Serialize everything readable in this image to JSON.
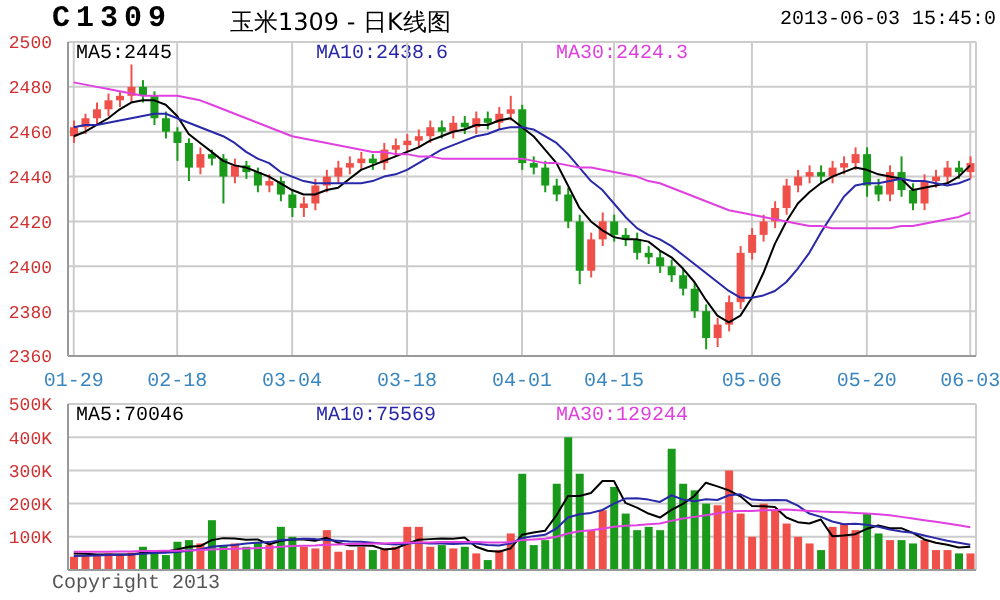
{
  "chart_data": [
    {
      "type": "candlestick",
      "title": "C1309",
      "subtitle": "玉米1309 - 日K线图",
      "annotations": [
        "2013-06-03 15:45:0"
      ],
      "categories": [
        "01-29",
        null,
        null,
        null,
        null,
        null,
        null,
        null,
        null,
        "02-18",
        null,
        null,
        null,
        null,
        null,
        null,
        null,
        null,
        null,
        "03-04",
        null,
        null,
        null,
        null,
        null,
        null,
        null,
        null,
        null,
        "03-18",
        null,
        null,
        null,
        null,
        null,
        null,
        null,
        null,
        null,
        "04-01",
        null,
        null,
        null,
        null,
        null,
        null,
        null,
        "04-15",
        null,
        null,
        null,
        null,
        null,
        null,
        null,
        null,
        null,
        null,
        null,
        "05-06",
        null,
        null,
        null,
        null,
        null,
        null,
        null,
        null,
        null,
        "05-20",
        null,
        null,
        null,
        null,
        null,
        null,
        null,
        null,
        "06-03"
      ],
      "ohlc": [
        [
          2458,
          2465,
          2455,
          2462
        ],
        [
          2462,
          2468,
          2459,
          2466
        ],
        [
          2466,
          2473,
          2463,
          2470
        ],
        [
          2470,
          2477,
          2467,
          2474
        ],
        [
          2474,
          2478,
          2471,
          2476
        ],
        [
          2476,
          2490,
          2473,
          2480
        ],
        [
          2480,
          2483,
          2473,
          2476
        ],
        [
          2476,
          2478,
          2463,
          2466
        ],
        [
          2466,
          2469,
          2457,
          2460
        ],
        [
          2460,
          2462,
          2447,
          2455
        ],
        [
          2455,
          2457,
          2438,
          2444
        ],
        [
          2444,
          2453,
          2441,
          2450
        ],
        [
          2450,
          2452,
          2445,
          2448
        ],
        [
          2448,
          2450,
          2428,
          2440
        ],
        [
          2440,
          2448,
          2437,
          2445
        ],
        [
          2445,
          2447,
          2439,
          2442
        ],
        [
          2442,
          2444,
          2433,
          2436
        ],
        [
          2436,
          2441,
          2433,
          2438
        ],
        [
          2438,
          2440,
          2429,
          2432
        ],
        [
          2432,
          2434,
          2422,
          2426
        ],
        [
          2426,
          2431,
          2422,
          2428
        ],
        [
          2428,
          2439,
          2425,
          2436
        ],
        [
          2436,
          2443,
          2433,
          2440
        ],
        [
          2440,
          2447,
          2437,
          2444
        ],
        [
          2444,
          2449,
          2441,
          2446
        ],
        [
          2446,
          2451,
          2443,
          2448
        ],
        [
          2448,
          2450,
          2443,
          2446
        ],
        [
          2446,
          2455,
          2443,
          2452
        ],
        [
          2452,
          2457,
          2449,
          2454
        ],
        [
          2454,
          2459,
          2451,
          2456
        ],
        [
          2456,
          2461,
          2453,
          2458
        ],
        [
          2458,
          2465,
          2455,
          2462
        ],
        [
          2462,
          2465,
          2457,
          2460
        ],
        [
          2460,
          2467,
          2457,
          2464
        ],
        [
          2464,
          2467,
          2459,
          2462
        ],
        [
          2462,
          2469,
          2459,
          2466
        ],
        [
          2466,
          2469,
          2461,
          2464
        ],
        [
          2464,
          2471,
          2461,
          2468
        ],
        [
          2468,
          2476,
          2465,
          2470
        ],
        [
          2470,
          2472,
          2443,
          2446
        ],
        [
          2446,
          2449,
          2441,
          2444
        ],
        [
          2444,
          2447,
          2433,
          2436
        ],
        [
          2436,
          2439,
          2429,
          2432
        ],
        [
          2432,
          2435,
          2417,
          2420
        ],
        [
          2420,
          2423,
          2392,
          2398
        ],
        [
          2398,
          2415,
          2395,
          2412
        ],
        [
          2412,
          2424,
          2409,
          2420
        ],
        [
          2420,
          2423,
          2411,
          2414
        ],
        [
          2414,
          2417,
          2409,
          2412
        ],
        [
          2412,
          2415,
          2403,
          2406
        ],
        [
          2406,
          2409,
          2401,
          2404
        ],
        [
          2404,
          2407,
          2397,
          2400
        ],
        [
          2400,
          2403,
          2393,
          2396
        ],
        [
          2396,
          2399,
          2387,
          2390
        ],
        [
          2390,
          2393,
          2377,
          2380
        ],
        [
          2380,
          2383,
          2363,
          2368
        ],
        [
          2368,
          2377,
          2364,
          2374
        ],
        [
          2374,
          2387,
          2371,
          2384
        ],
        [
          2384,
          2409,
          2381,
          2406
        ],
        [
          2406,
          2417,
          2403,
          2414
        ],
        [
          2414,
          2423,
          2411,
          2420
        ],
        [
          2420,
          2429,
          2417,
          2426
        ],
        [
          2426,
          2439,
          2423,
          2436
        ],
        [
          2436,
          2443,
          2433,
          2440
        ],
        [
          2440,
          2445,
          2437,
          2442
        ],
        [
          2442,
          2445,
          2437,
          2440
        ],
        [
          2440,
          2447,
          2437,
          2444
        ],
        [
          2444,
          2449,
          2441,
          2446
        ],
        [
          2446,
          2453,
          2443,
          2450
        ],
        [
          2450,
          2453,
          2431,
          2436
        ],
        [
          2436,
          2439,
          2429,
          2432
        ],
        [
          2432,
          2445,
          2429,
          2442
        ],
        [
          2442,
          2449,
          2431,
          2434
        ],
        [
          2434,
          2437,
          2425,
          2428
        ],
        [
          2428,
          2441,
          2425,
          2438
        ],
        [
          2438,
          2443,
          2435,
          2440
        ],
        [
          2440,
          2447,
          2437,
          2444
        ],
        [
          2444,
          2447,
          2439,
          2442
        ],
        [
          2442,
          2449,
          2439,
          2446
        ]
      ],
      "colors": [
        "#f0504a",
        "#f0504a",
        "#f0504a",
        "#f0504a",
        "#f0504a",
        "#f0504a",
        "#1a9a1a",
        "#1a9a1a",
        "#1a9a1a",
        "#1a9a1a",
        "#1a9a1a",
        "#f0504a",
        "#1a9a1a",
        "#1a9a1a",
        "#f0504a",
        "#1a9a1a",
        "#1a9a1a",
        "#f0504a",
        "#1a9a1a",
        "#1a9a1a",
        "#f0504a",
        "#f0504a",
        "#f0504a",
        "#f0504a",
        "#f0504a",
        "#f0504a",
        "#1a9a1a",
        "#f0504a",
        "#f0504a",
        "#f0504a",
        "#f0504a",
        "#f0504a",
        "#1a9a1a",
        "#f0504a",
        "#1a9a1a",
        "#f0504a",
        "#1a9a1a",
        "#f0504a",
        "#f0504a",
        "#1a9a1a",
        "#1a9a1a",
        "#1a9a1a",
        "#1a9a1a",
        "#1a9a1a",
        "#1a9a1a",
        "#f0504a",
        "#f0504a",
        "#1a9a1a",
        "#1a9a1a",
        "#1a9a1a",
        "#1a9a1a",
        "#1a9a1a",
        "#1a9a1a",
        "#1a9a1a",
        "#1a9a1a",
        "#1a9a1a",
        "#f0504a",
        "#f0504a",
        "#f0504a",
        "#f0504a",
        "#f0504a",
        "#f0504a",
        "#f0504a",
        "#f0504a",
        "#f0504a",
        "#1a9a1a",
        "#f0504a",
        "#f0504a",
        "#f0504a",
        "#1a9a1a",
        "#1a9a1a",
        "#f0504a",
        "#1a9a1a",
        "#1a9a1a",
        "#f0504a",
        "#f0504a",
        "#f0504a",
        "#1a9a1a",
        "#f0504a"
      ],
      "series": [
        {
          "type": "line",
          "name": "MA5:2445",
          "color": "#000000",
          "values": [
            2458,
            2460,
            2463,
            2466,
            2470,
            2473,
            2474,
            2474,
            2472,
            2467,
            2459,
            2455,
            2451,
            2447,
            2445,
            2444,
            2442,
            2440,
            2437,
            2434,
            2432,
            2432,
            2434,
            2435,
            2439,
            2443,
            2445,
            2447,
            2449,
            2451,
            2453,
            2456,
            2458,
            2460,
            2461,
            2463,
            2463,
            2465,
            2466,
            2462,
            2458,
            2452,
            2446,
            2436,
            2426,
            2420,
            2416,
            2413,
            2412,
            2412,
            2411,
            2407,
            2404,
            2399,
            2393,
            2385,
            2378,
            2375,
            2378,
            2386,
            2397,
            2410,
            2420,
            2428,
            2433,
            2437,
            2440,
            2442,
            2444,
            2443,
            2441,
            2440,
            2439,
            2434,
            2435,
            2436,
            2437,
            2440,
            2445
          ]
        },
        {
          "type": "line",
          "name": "MA10:2438.6",
          "color": "#2828a8",
          "values": [
            2462,
            2463,
            2463,
            2464,
            2465,
            2466,
            2467,
            2468,
            2468,
            2466,
            2464,
            2462,
            2460,
            2458,
            2455,
            2451,
            2448,
            2446,
            2442,
            2440,
            2438,
            2437,
            2437,
            2437,
            2437,
            2437,
            2438,
            2440,
            2441,
            2443,
            2446,
            2449,
            2452,
            2454,
            2456,
            2458,
            2459,
            2461,
            2462,
            2462,
            2461,
            2458,
            2455,
            2450,
            2444,
            2438,
            2434,
            2428,
            2422,
            2417,
            2414,
            2412,
            2409,
            2405,
            2401,
            2397,
            2393,
            2389,
            2386,
            2386,
            2387,
            2389,
            2393,
            2399,
            2406,
            2415,
            2423,
            2431,
            2436,
            2437,
            2437,
            2438,
            2439,
            2438,
            2438,
            2437,
            2436,
            2437,
            2439
          ]
        },
        {
          "type": "line",
          "name": "MA30:2424.3",
          "color": "#e040e0",
          "values": [
            2482,
            2481,
            2480,
            2479,
            2478,
            2477,
            2476,
            2476,
            2476,
            2476,
            2475,
            2474,
            2472,
            2470,
            2468,
            2466,
            2464,
            2462,
            2460,
            2458,
            2457,
            2456,
            2455,
            2454,
            2453,
            2452,
            2451,
            2451,
            2450,
            2450,
            2449,
            2449,
            2448,
            2448,
            2448,
            2448,
            2448,
            2448,
            2448,
            2448,
            2447,
            2446,
            2446,
            2445,
            2444,
            2444,
            2443,
            2442,
            2441,
            2440,
            2438,
            2437,
            2435,
            2433,
            2431,
            2429,
            2427,
            2425,
            2424,
            2423,
            2422,
            2421,
            2420,
            2419,
            2418,
            2418,
            2417,
            2417,
            2417,
            2417,
            2417,
            2417,
            2418,
            2418,
            2419,
            2420,
            2421,
            2422,
            2424
          ]
        }
      ],
      "ylim": [
        2360,
        2500
      ],
      "yticks": [
        2360,
        2380,
        2400,
        2420,
        2440,
        2460,
        2480,
        2500
      ],
      "grid": true,
      "legend": "top",
      "marker": "none"
    },
    {
      "type": "bar",
      "annotations": [
        "Copyright 2013"
      ],
      "categories": [
        null,
        null,
        null,
        null,
        null,
        null,
        null,
        null,
        null,
        null,
        null,
        null,
        null,
        null,
        null,
        null,
        null,
        null,
        null,
        null,
        null,
        null,
        null,
        null,
        null,
        null,
        null,
        null,
        null,
        null,
        null,
        null,
        null,
        null,
        null,
        null,
        null,
        null,
        null,
        null,
        null,
        null,
        null,
        null,
        null,
        null,
        null,
        null,
        null,
        null,
        null,
        null,
        null,
        null,
        null,
        null,
        null,
        null,
        null,
        null,
        null,
        null,
        null,
        null,
        null,
        null,
        null,
        null,
        null,
        null,
        null,
        null,
        null,
        null,
        null,
        null,
        null,
        null,
        null
      ],
      "values": [
        40000,
        45000,
        42000,
        50000,
        48000,
        52000,
        70000,
        60000,
        45000,
        85000,
        90000,
        80000,
        150000,
        75000,
        80000,
        70000,
        85000,
        75000,
        130000,
        100000,
        70000,
        65000,
        120000,
        55000,
        60000,
        70000,
        60000,
        65000,
        70000,
        130000,
        130000,
        70000,
        75000,
        65000,
        70000,
        50000,
        30000,
        60000,
        110000,
        290000,
        75000,
        90000,
        260000,
        400000,
        290000,
        120000,
        180000,
        250000,
        170000,
        120000,
        130000,
        120000,
        365000,
        260000,
        240000,
        200000,
        195000,
        300000,
        170000,
        100000,
        200000,
        180000,
        140000,
        100000,
        80000,
        60000,
        130000,
        140000,
        120000,
        170000,
        110000,
        90000,
        90000,
        80000,
        90000,
        60000,
        60000,
        50000,
        50000
      ],
      "colors": [
        "#f0504a",
        "#f0504a",
        "#f0504a",
        "#f0504a",
        "#f0504a",
        "#f0504a",
        "#1a9a1a",
        "#1a9a1a",
        "#1a9a1a",
        "#1a9a1a",
        "#1a9a1a",
        "#f0504a",
        "#1a9a1a",
        "#1a9a1a",
        "#f0504a",
        "#1a9a1a",
        "#1a9a1a",
        "#f0504a",
        "#1a9a1a",
        "#1a9a1a",
        "#f0504a",
        "#f0504a",
        "#f0504a",
        "#f0504a",
        "#f0504a",
        "#f0504a",
        "#1a9a1a",
        "#f0504a",
        "#f0504a",
        "#f0504a",
        "#f0504a",
        "#f0504a",
        "#1a9a1a",
        "#f0504a",
        "#1a9a1a",
        "#f0504a",
        "#1a9a1a",
        "#f0504a",
        "#f0504a",
        "#1a9a1a",
        "#1a9a1a",
        "#1a9a1a",
        "#1a9a1a",
        "#1a9a1a",
        "#1a9a1a",
        "#f0504a",
        "#f0504a",
        "#1a9a1a",
        "#1a9a1a",
        "#1a9a1a",
        "#1a9a1a",
        "#1a9a1a",
        "#1a9a1a",
        "#1a9a1a",
        "#1a9a1a",
        "#1a9a1a",
        "#f0504a",
        "#f0504a",
        "#f0504a",
        "#f0504a",
        "#f0504a",
        "#f0504a",
        "#f0504a",
        "#f0504a",
        "#f0504a",
        "#1a9a1a",
        "#f0504a",
        "#f0504a",
        "#f0504a",
        "#1a9a1a",
        "#1a9a1a",
        "#f0504a",
        "#1a9a1a",
        "#1a9a1a",
        "#f0504a",
        "#f0504a",
        "#f0504a",
        "#1a9a1a",
        "#f0504a"
      ],
      "series": [
        {
          "type": "line",
          "name": "MA5:70046",
          "color": "#000000",
          "values": [
            50000,
            49000,
            47000,
            47000,
            47000,
            47000,
            52000,
            56000,
            55000,
            62000,
            70000,
            72000,
            90000,
            96000,
            95000,
            91000,
            92000,
            77000,
            88000,
            92000,
            92000,
            88000,
            97000,
            82000,
            74000,
            74000,
            73000,
            62000,
            65000,
            79000,
            91000,
            93000,
            95000,
            94000,
            98000,
            70000,
            58000,
            55000,
            65000,
            106000,
            113000,
            118000,
            165000,
            223000,
            223000,
            232000,
            268000,
            268000,
            202000,
            188000,
            170000,
            158000,
            181000,
            199000,
            223000,
            263000,
            252000,
            240000,
            222000,
            193000,
            192000,
            190000,
            158000,
            144000,
            140000,
            152000,
            102000,
            104000,
            108000,
            124000,
            134000,
            126000,
            126000,
            112000,
            92000,
            82000,
            76000,
            68000,
            70000
          ]
        },
        {
          "type": "line",
          "name": "MA10:75569",
          "color": "#2828a8",
          "values": [
            42000,
            43000,
            44000,
            45000,
            46000,
            47000,
            49000,
            51000,
            52000,
            54000,
            58000,
            62000,
            70000,
            73000,
            75000,
            80000,
            82000,
            84000,
            90000,
            92000,
            94000,
            93000,
            90000,
            88000,
            86000,
            85000,
            82000,
            79000,
            77000,
            80000,
            82000,
            80000,
            80000,
            78000,
            80000,
            80000,
            75000,
            74000,
            80000,
            96000,
            102000,
            106000,
            125000,
            158000,
            168000,
            172000,
            181000,
            200000,
            215000,
            216000,
            212000,
            205000,
            225000,
            212000,
            207000,
            213000,
            211000,
            225000,
            228000,
            212000,
            210000,
            211000,
            210000,
            194000,
            170000,
            160000,
            146000,
            138000,
            139000,
            136000,
            130000,
            122000,
            116000,
            112000,
            104000,
            96000,
            88000,
            82000,
            76000
          ]
        },
        {
          "type": "line",
          "name": "MA30:129244",
          "color": "#e040e0",
          "values": [
            55000,
            55000,
            55000,
            55000,
            56000,
            56000,
            57000,
            57000,
            58000,
            58000,
            59000,
            60000,
            62000,
            63000,
            64000,
            65000,
            66000,
            67000,
            70000,
            72000,
            73000,
            74000,
            76000,
            77000,
            78000,
            79000,
            80000,
            80000,
            81000,
            82000,
            83000,
            83000,
            84000,
            84000,
            84000,
            84000,
            83000,
            83000,
            84000,
            90000,
            92000,
            94000,
            100000,
            110000,
            117000,
            120000,
            124000,
            130000,
            133000,
            135000,
            138000,
            140000,
            148000,
            155000,
            160000,
            165000,
            170000,
            176000,
            178000,
            178000,
            180000,
            181000,
            182000,
            180000,
            178000,
            176000,
            175000,
            174000,
            172000,
            170000,
            168000,
            165000,
            160000,
            155000,
            150000,
            145000,
            140000,
            135000,
            129000
          ]
        }
      ],
      "ylim": [
        0,
        500000
      ],
      "yticks": [
        {
          "value": 100000,
          "label": "100K"
        },
        {
          "value": 200000,
          "label": "200K"
        },
        {
          "value": 300000,
          "label": "300K"
        },
        {
          "value": 400000,
          "label": "400K"
        },
        {
          "value": 500000,
          "label": "500K"
        }
      ],
      "tick_labels": "y",
      "grid": true,
      "legend": "top",
      "marker": "none"
    }
  ]
}
